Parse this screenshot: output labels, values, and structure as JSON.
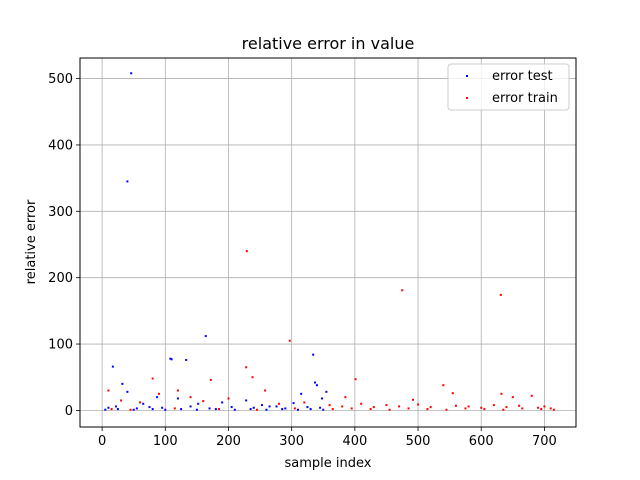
{
  "chart_data": {
    "type": "scatter",
    "title": "relative error in value",
    "xlabel": "sample index",
    "ylabel": "relative error",
    "xlim": [
      -35,
      750
    ],
    "ylim": [
      -25,
      531
    ],
    "xticks": [
      0,
      100,
      200,
      300,
      400,
      500,
      600,
      700
    ],
    "yticks": [
      0,
      100,
      200,
      300,
      400,
      500
    ],
    "grid": true,
    "legend_position": "top-right",
    "series": [
      {
        "name": "error test",
        "color": "#0000ff",
        "points": [
          [
            46,
            508
          ],
          [
            40,
            345
          ],
          [
            164,
            112
          ],
          [
            108,
            78
          ],
          [
            110,
            77
          ],
          [
            133,
            76
          ],
          [
            17,
            66
          ],
          [
            334,
            84
          ],
          [
            337,
            42
          ],
          [
            340,
            38
          ],
          [
            32,
            40
          ],
          [
            40,
            28
          ],
          [
            65,
            10
          ],
          [
            87,
            20
          ],
          [
            120,
            18
          ],
          [
            152,
            10
          ],
          [
            190,
            12
          ],
          [
            228,
            15
          ],
          [
            253,
            8
          ],
          [
            276,
            6
          ],
          [
            303,
            11
          ],
          [
            315,
            25
          ],
          [
            348,
            18
          ],
          [
            355,
            28
          ],
          [
            10,
            4
          ],
          [
            22,
            6
          ],
          [
            55,
            3
          ],
          [
            75,
            5
          ],
          [
            95,
            4
          ],
          [
            140,
            6
          ],
          [
            170,
            3
          ],
          [
            205,
            5
          ],
          [
            240,
            4
          ],
          [
            265,
            6
          ],
          [
            290,
            3
          ],
          [
            325,
            5
          ],
          [
            345,
            4
          ],
          [
            5,
            1
          ],
          [
            25,
            2
          ],
          [
            50,
            1
          ],
          [
            80,
            2
          ],
          [
            100,
            1
          ],
          [
            125,
            2
          ],
          [
            150,
            1
          ],
          [
            180,
            2
          ],
          [
            210,
            1
          ],
          [
            235,
            2
          ],
          [
            260,
            1
          ],
          [
            285,
            2
          ],
          [
            310,
            1
          ],
          [
            330,
            2
          ],
          [
            350,
            1
          ]
        ]
      },
      {
        "name": "error train",
        "color": "#ff0000",
        "points": [
          [
            229,
            240
          ],
          [
            475,
            181
          ],
          [
            631,
            174
          ],
          [
            297,
            105
          ],
          [
            228,
            65
          ],
          [
            401,
            47
          ],
          [
            80,
            48
          ],
          [
            238,
            50
          ],
          [
            172,
            46
          ],
          [
            120,
            30
          ],
          [
            140,
            20
          ],
          [
            258,
            30
          ],
          [
            385,
            20
          ],
          [
            540,
            38
          ],
          [
            555,
            26
          ],
          [
            632,
            25
          ],
          [
            680,
            22
          ],
          [
            650,
            20
          ],
          [
            492,
            16
          ],
          [
            10,
            30
          ],
          [
            30,
            15
          ],
          [
            60,
            12
          ],
          [
            90,
            25
          ],
          [
            160,
            14
          ],
          [
            200,
            18
          ],
          [
            280,
            10
          ],
          [
            320,
            12
          ],
          [
            360,
            8
          ],
          [
            380,
            6
          ],
          [
            410,
            10
          ],
          [
            430,
            5
          ],
          [
            450,
            8
          ],
          [
            470,
            6
          ],
          [
            500,
            9
          ],
          [
            520,
            5
          ],
          [
            560,
            7
          ],
          [
            580,
            6
          ],
          [
            600,
            4
          ],
          [
            620,
            8
          ],
          [
            640,
            5
          ],
          [
            660,
            7
          ],
          [
            690,
            4
          ],
          [
            700,
            6
          ],
          [
            710,
            3
          ],
          [
            365,
            2
          ],
          [
            395,
            3
          ],
          [
            425,
            2
          ],
          [
            455,
            1
          ],
          [
            485,
            3
          ],
          [
            515,
            2
          ],
          [
            545,
            1
          ],
          [
            575,
            3
          ],
          [
            605,
            2
          ],
          [
            635,
            1
          ],
          [
            665,
            3
          ],
          [
            695,
            2
          ],
          [
            715,
            1
          ],
          [
            15,
            2
          ],
          [
            45,
            1
          ],
          [
            115,
            3
          ],
          [
            185,
            2
          ],
          [
            245,
            1
          ],
          [
            305,
            3
          ]
        ]
      }
    ]
  }
}
